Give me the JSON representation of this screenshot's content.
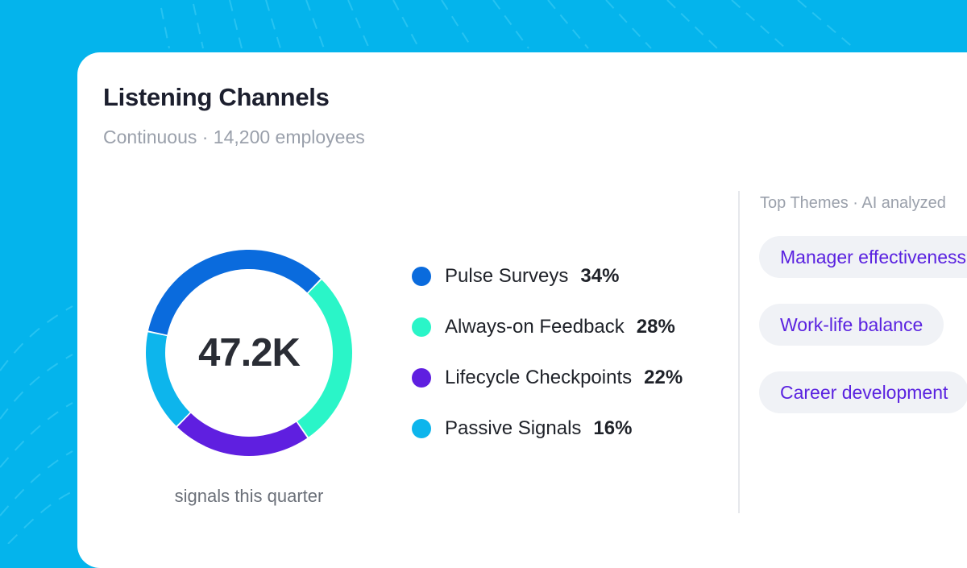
{
  "header": {
    "title": "Listening Channels",
    "subtitle": "Continuous · 14,200 employees"
  },
  "summary": {
    "total": "47.2K",
    "caption": "signals this quarter"
  },
  "chart_data": {
    "type": "pie",
    "categories": [
      "Pulse Surveys",
      "Always-on Feedback",
      "Lifecycle Checkpoints",
      "Passive Signals"
    ],
    "values": [
      34,
      28,
      22,
      16
    ],
    "value_labels": [
      "34%",
      "28%",
      "22%",
      "16%"
    ],
    "colors": [
      "#0A6BDD",
      "#2AF5C8",
      "#5F1FE0",
      "#0DB5EC"
    ],
    "title": "",
    "legend": "right"
  },
  "themes": {
    "title": "Top Themes · AI analyzed",
    "items": [
      {
        "label": "Manager effectiveness"
      },
      {
        "label": "Work-life balance"
      },
      {
        "label": "Career development"
      }
    ]
  },
  "colors": {
    "background": "#04B4EC",
    "card": "#FFFFFF",
    "accent_text": "#5A22E0"
  }
}
